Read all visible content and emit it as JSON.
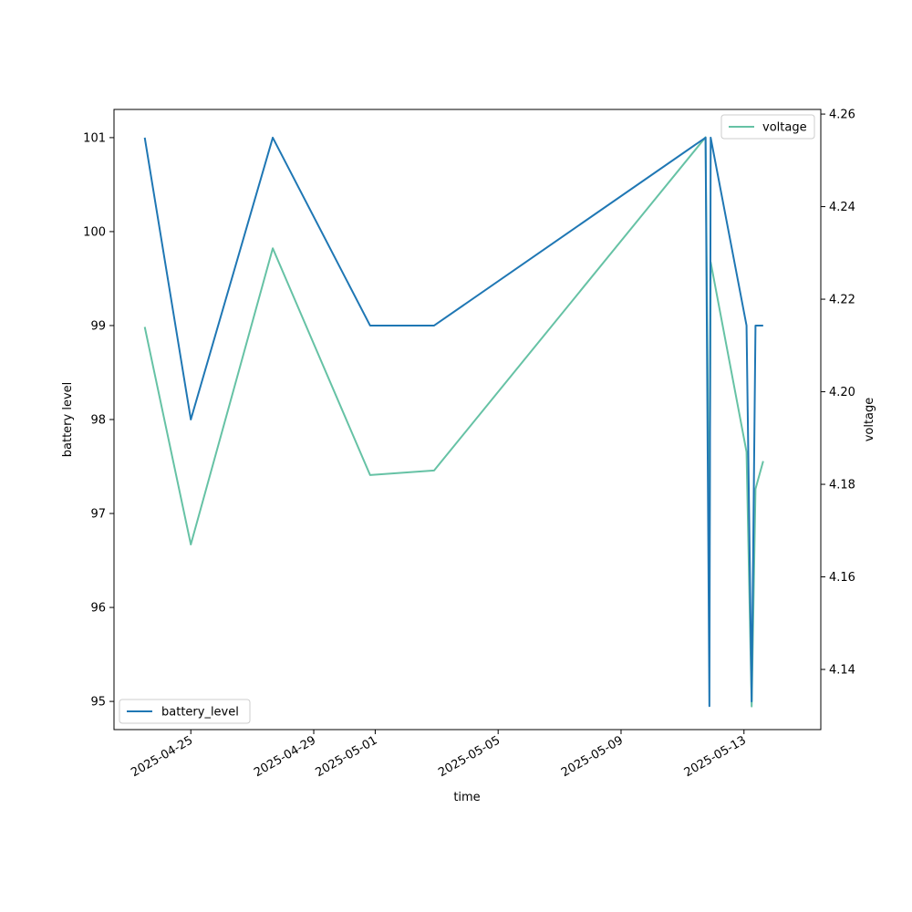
{
  "chart_data": {
    "type": "line",
    "xlabel": "time",
    "ylabel_left": "battery level",
    "ylabel_right": "voltage",
    "x_range": [
      "2025-04-22T12:00",
      "2025-05-15T12:00"
    ],
    "x_ticks": [
      "2025-04-25",
      "2025-04-29",
      "2025-05-01",
      "2025-05-05",
      "2025-05-09",
      "2025-05-13"
    ],
    "ylim_left": [
      94.7,
      101.3
    ],
    "yticks_left": [
      95,
      96,
      97,
      98,
      99,
      100,
      101
    ],
    "ylim_right": [
      4.127,
      4.261
    ],
    "yticks_right": [
      4.14,
      4.16,
      4.18,
      4.2,
      4.22,
      4.24,
      4.26
    ],
    "grid": false,
    "series": [
      {
        "name": "battery_level",
        "axis": "left",
        "color": "#1f77b4",
        "legend": "lower-left",
        "points": [
          [
            "2025-04-23T12:00",
            101
          ],
          [
            "2025-04-25T00:00",
            98
          ],
          [
            "2025-04-27T16:00",
            101
          ],
          [
            "2025-04-30T20:00",
            99
          ],
          [
            "2025-05-02T22:00",
            99
          ],
          [
            "2025-05-11T18:00",
            101
          ],
          [
            "2025-05-11T21:00",
            94.95
          ],
          [
            "2025-05-11T22:00",
            101
          ],
          [
            "2025-05-13T02:00",
            99
          ],
          [
            "2025-05-13T06:00",
            95
          ],
          [
            "2025-05-13T09:00",
            99
          ],
          [
            "2025-05-13T15:00",
            99
          ]
        ]
      },
      {
        "name": "voltage",
        "axis": "right",
        "color": "#66c2a5",
        "legend": "upper-right",
        "points": [
          [
            "2025-04-23T12:00",
            4.214
          ],
          [
            "2025-04-25T00:00",
            4.167
          ],
          [
            "2025-04-27T16:00",
            4.231
          ],
          [
            "2025-04-30T20:00",
            4.182
          ],
          [
            "2025-05-02T22:00",
            4.183
          ],
          [
            "2025-05-11T18:00",
            4.255
          ],
          [
            "2025-05-11T21:00",
            4.161
          ],
          [
            "2025-05-11T22:00",
            4.228
          ],
          [
            "2025-05-13T02:00",
            4.187
          ],
          [
            "2025-05-13T06:00",
            4.132
          ],
          [
            "2025-05-13T09:00",
            4.179
          ],
          [
            "2025-05-13T15:00",
            4.185
          ]
        ]
      }
    ]
  }
}
